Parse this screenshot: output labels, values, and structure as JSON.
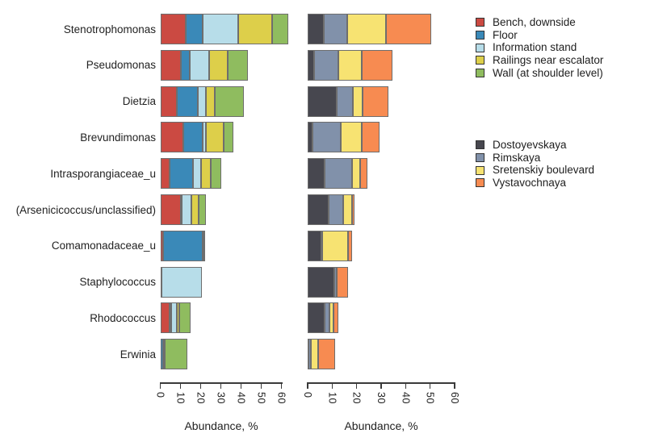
{
  "chart_data": {
    "type": "bar",
    "orientation": "horizontal-stacked",
    "title": "",
    "xlabel": "Abundance, %",
    "categories": [
      "Stenotrophomonas",
      "Pseudomonas",
      "Dietzia",
      "Brevundimonas",
      "Intrasporangiaceae_u",
      "(Arsenicicoccus/unclassified)",
      "Comamonadaceae_u",
      "Staphylococcus",
      "Rhodococcus",
      "Erwinia"
    ],
    "axis": {
      "min": 0,
      "max": 60,
      "ticks": [
        0,
        10,
        20,
        30,
        40,
        50,
        60
      ]
    },
    "grid": false,
    "panels": [
      {
        "id": "by-surface",
        "legend_position": "top-right",
        "series": [
          {
            "name": "Bench, downside",
            "color": "#cb4a42",
            "values": [
              12.5,
              10,
              8,
              11.5,
              4.5,
              10,
              1.5,
              0,
              4.5,
              0.3
            ]
          },
          {
            "name": "Floor",
            "color": "#3a89b8",
            "values": [
              8.5,
              4.5,
              10.5,
              9.5,
              11.5,
              0.5,
              19.5,
              0.6,
              1,
              1
            ]
          },
          {
            "name": "Information stand",
            "color": "#b7dde9",
            "values": [
              17.5,
              9.5,
              4,
              1.5,
              4,
              5,
              0,
              19.8,
              2.5,
              0.5
            ]
          },
          {
            "name": "Railings near escalator",
            "color": "#ddcf4a",
            "values": [
              17,
              9.5,
              4.5,
              9,
              5,
              3.5,
              0.5,
              0,
              1.5,
              0.5
            ]
          },
          {
            "name": "Wall (at shoulder level)",
            "color": "#8fbc5f",
            "values": [
              8,
              10,
              14.5,
              4.5,
              5,
              3.5,
              0.5,
              0,
              5.5,
              11
            ]
          }
        ]
      },
      {
        "id": "by-station",
        "legend_position": "middle-right",
        "series": [
          {
            "name": "Dostoyevskaya",
            "color": "#47474f",
            "values": [
              6.5,
              2.5,
              12,
              2,
              7,
              8.5,
              5.5,
              11,
              7,
              0.3
            ]
          },
          {
            "name": "Rimskaya",
            "color": "#8191aa",
            "values": [
              9.5,
              10,
              6.5,
              11.5,
              11,
              6,
              0.5,
              1,
              2,
              1
            ]
          },
          {
            "name": "Sretenskiy boulevard",
            "color": "#f7e372",
            "values": [
              16,
              9.5,
              4,
              8.5,
              3.5,
              3.5,
              10.5,
              0,
              1.5,
              3
            ]
          },
          {
            "name": "Vystavochnaya",
            "color": "#f78b51",
            "values": [
              18.5,
              12.5,
              10.5,
              7.5,
              3,
              1,
              1.5,
              4.5,
              2,
              7
            ]
          }
        ]
      }
    ]
  }
}
